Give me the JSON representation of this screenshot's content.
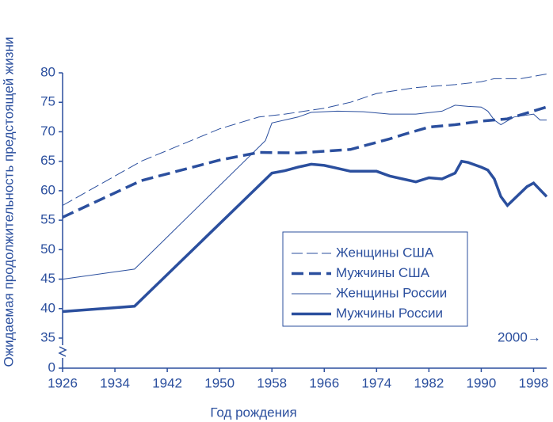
{
  "chart_data": {
    "type": "line",
    "ylabel": "Ожидаемая продолжительность предстоящей жизни",
    "xlabel": "Год рождения",
    "annotation": "2000→",
    "xlim": [
      1926,
      2000
    ],
    "xticks": [
      1926,
      1934,
      1942,
      1950,
      1958,
      1966,
      1974,
      1982,
      1990,
      1998
    ],
    "ylim": [
      0,
      80
    ],
    "yticks": [
      0,
      35,
      40,
      45,
      50,
      55,
      60,
      65,
      70,
      75,
      80
    ],
    "y_break": [
      0,
      35
    ],
    "color": "#2b4f9e",
    "series": [
      {
        "name": "Женщины США",
        "style": "dashed",
        "weight": "thin",
        "x": [
          1926,
          1938,
          1950,
          1956,
          1960,
          1966,
          1970,
          1974,
          1980,
          1986,
          1990,
          1992,
          1996,
          2000
        ],
        "values": [
          57.5,
          65,
          70.5,
          72.5,
          73,
          74,
          75,
          76.5,
          77.5,
          78,
          78.5,
          79,
          79,
          79.8
        ]
      },
      {
        "name": "Мужчины США",
        "style": "dashed",
        "weight": "thick",
        "x": [
          1926,
          1938,
          1950,
          1956,
          1962,
          1970,
          1976,
          1978,
          1982,
          1986,
          1990,
          1994,
          2000
        ],
        "values": [
          55.5,
          61.7,
          65.2,
          66.5,
          66.4,
          67,
          68.8,
          69.5,
          70.8,
          71.2,
          71.8,
          72.2,
          74.2
        ]
      },
      {
        "name": "Женщины России",
        "style": "solid",
        "weight": "thin",
        "x": [
          1926,
          1937,
          1957,
          1958,
          1962,
          1964,
          1968,
          1972,
          1976,
          1980,
          1984,
          1986,
          1988,
          1990,
          1991,
          1992,
          1993,
          1995,
          1998,
          1999,
          2000
        ],
        "values": [
          45,
          46.7,
          68.5,
          71.5,
          72.5,
          73.3,
          73.5,
          73.4,
          73,
          73,
          73.5,
          74.5,
          74.3,
          74.2,
          73.5,
          72,
          71.2,
          72.5,
          73,
          72,
          72
        ]
      },
      {
        "name": "Мужчины России",
        "style": "solid",
        "weight": "thick",
        "x": [
          1926,
          1937,
          1958,
          1960,
          1962,
          1964,
          1966,
          1968,
          1970,
          1974,
          1976,
          1980,
          1982,
          1984,
          1986,
          1987,
          1988,
          1990,
          1991,
          1992,
          1993,
          1994,
          1997,
          1998,
          2000
        ],
        "values": [
          39.5,
          40.4,
          63,
          63.4,
          64,
          64.5,
          64.3,
          63.8,
          63.3,
          63.3,
          62.5,
          61.5,
          62.2,
          62,
          63,
          65,
          64.8,
          64,
          63.5,
          62,
          59,
          57.5,
          60.7,
          61.3,
          59
        ]
      }
    ]
  }
}
